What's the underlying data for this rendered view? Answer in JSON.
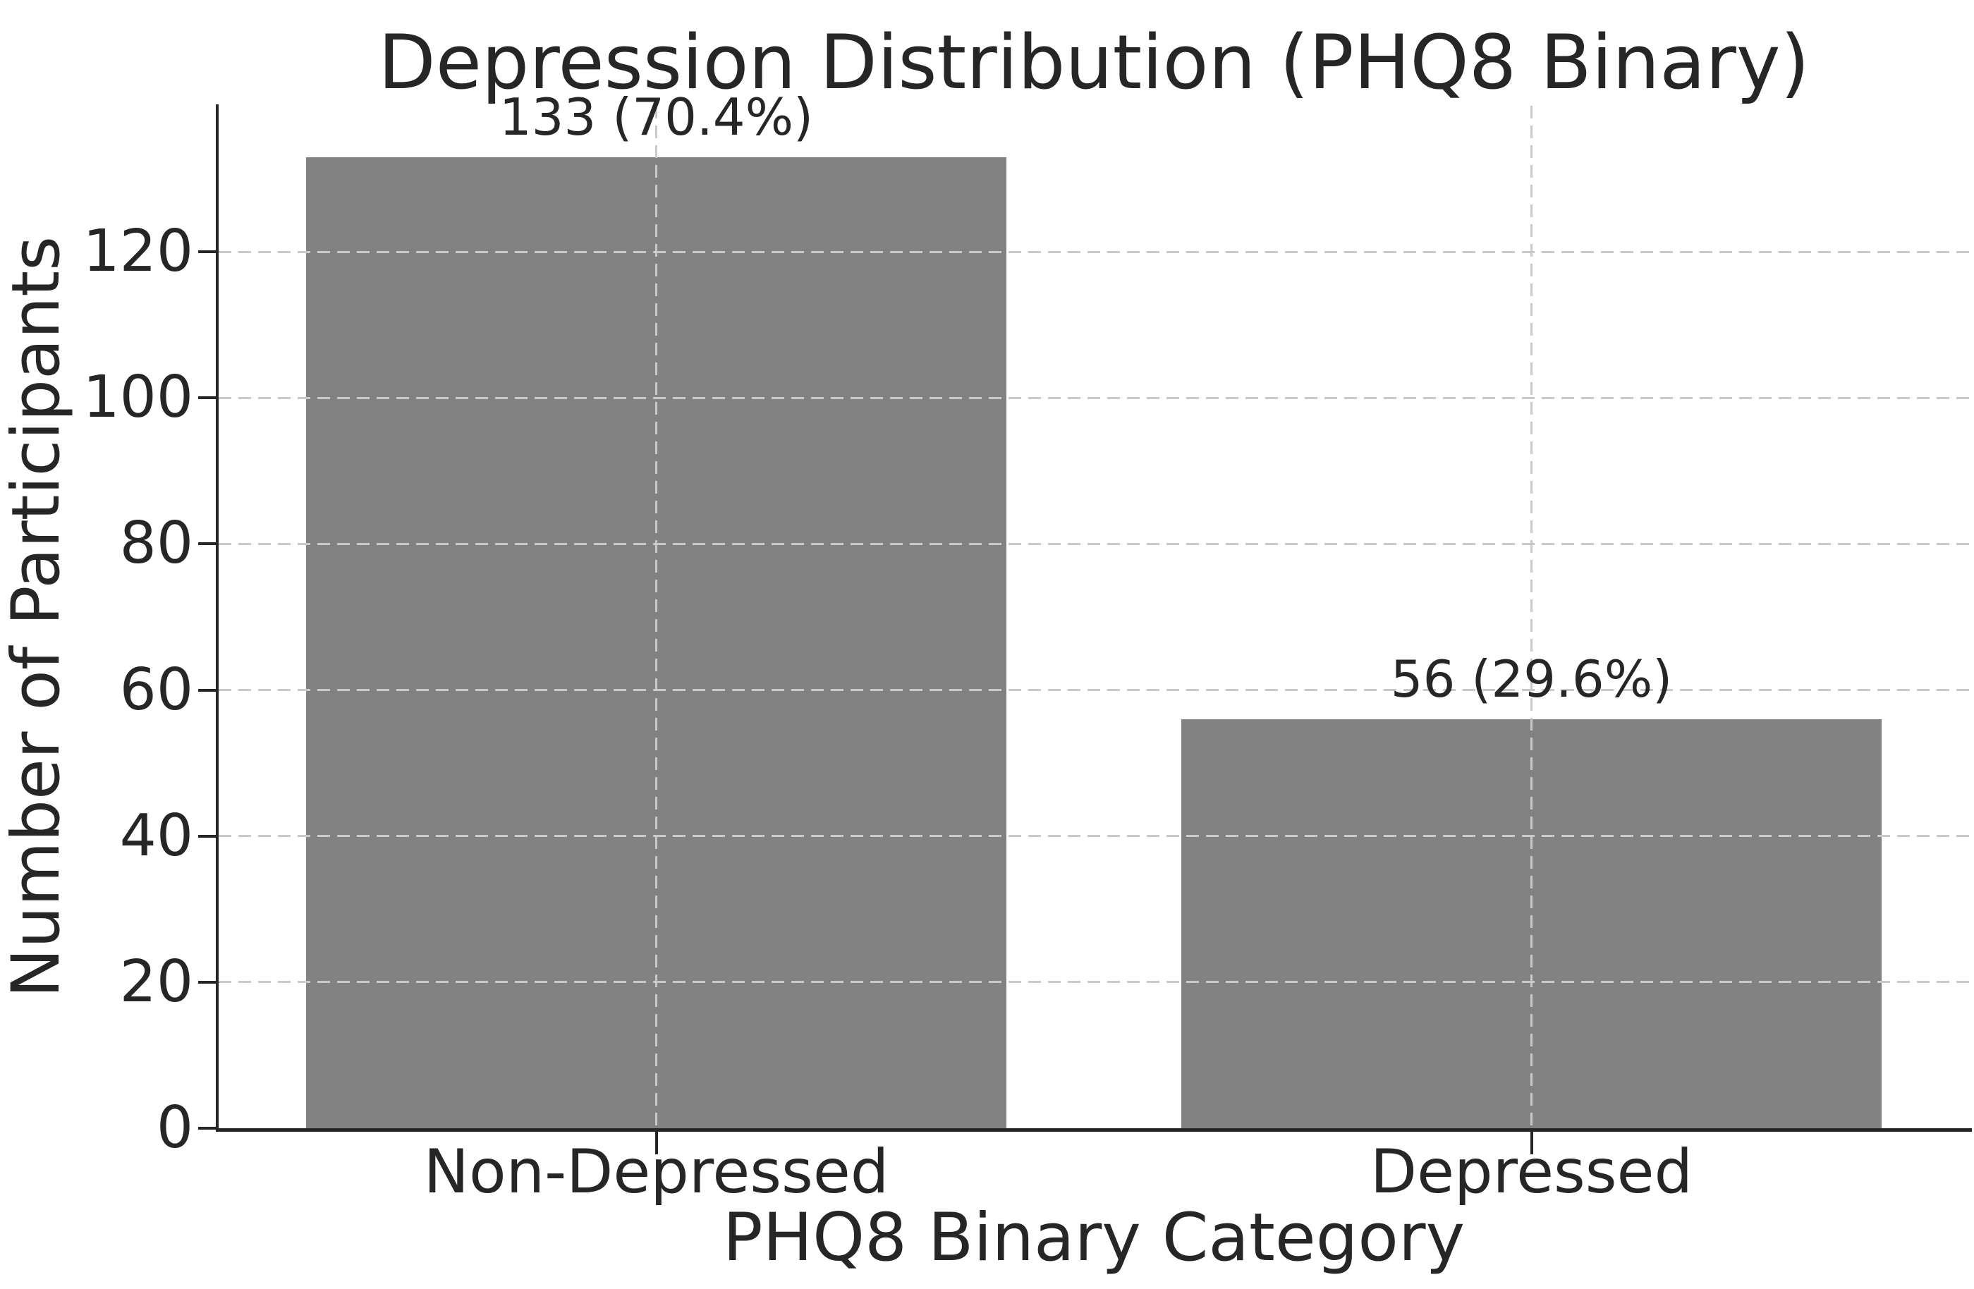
{
  "chart_data": {
    "type": "bar",
    "title": "Depression Distribution (PHQ8 Binary)",
    "xlabel": "PHQ8 Binary Category",
    "ylabel": "Number of Participants",
    "categories": [
      "Non-Depressed",
      "Depressed"
    ],
    "values": [
      133,
      56
    ],
    "percent_labels": [
      "70.4%",
      "29.6%"
    ],
    "bar_value_labels": [
      "133 (70.4%)",
      "56 (29.6%)"
    ],
    "yticks": [
      0,
      20,
      40,
      60,
      80,
      100,
      120
    ],
    "ylim": [
      0,
      140
    ],
    "grid": "both-axes dashed, drawn over bars",
    "legend_position": "none",
    "colors": {
      "bar_fill": "#828282",
      "grid_line": "#c9c9c9",
      "text": "#262626",
      "spine": "#262626",
      "background": "#ffffff"
    }
  }
}
